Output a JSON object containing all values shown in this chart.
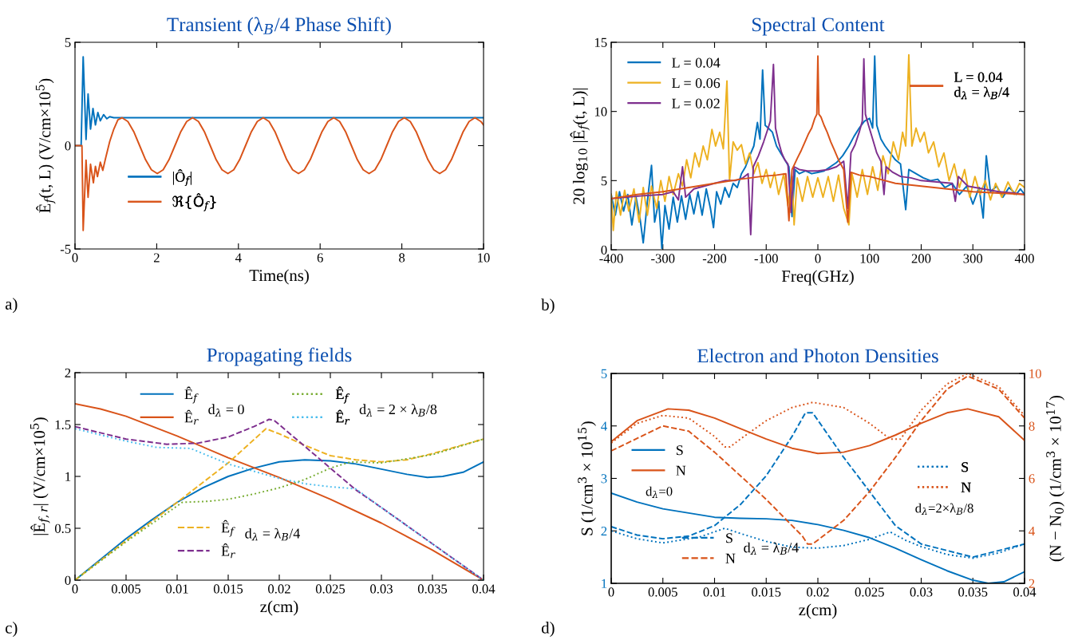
{
  "chart_data": [
    {
      "type": "line",
      "title": "Transient (λ$_{B}$/4 Phase Shift)",
      "xlabel": "Time(ns)",
      "ylabel": "Ê$_{f}$(t, L) (V/cm×10$^{5}$)",
      "xlim": [
        0,
        10
      ],
      "xticks": [
        0,
        2,
        4,
        6,
        8,
        10
      ],
      "ylim": [
        -5,
        5
      ],
      "yticks": [
        -5,
        0,
        5
      ],
      "legend": "bottom left",
      "annotations": [
        "a)"
      ],
      "series": [
        {
          "name": "|Ô$_{f}$|",
          "color": "#0072bd",
          "x": [
            0,
            0.15,
            0.2,
            0.27,
            0.32,
            0.38,
            0.44,
            0.5,
            0.56,
            0.62,
            0.7,
            0.78,
            0.85,
            0.95,
            10
          ],
          "values": [
            0,
            0,
            4.3,
            0.3,
            2.5,
            0.8,
            1.8,
            1.0,
            1.6,
            1.2,
            1.5,
            1.3,
            1.4,
            1.35,
            1.35
          ]
        },
        {
          "name": "ℜ{Ô$_{f}$}",
          "color": "#d95319",
          "x": [
            0,
            0.17,
            0.2,
            0.27,
            0.32,
            0.38,
            0.45,
            0.5,
            0.55,
            0.62,
            0.68,
            0.75,
            0.85,
            0.95,
            1.05,
            1.15,
            1.294,
            1.438,
            1.582,
            1.726,
            1.87,
            2.014,
            2.158,
            2.302,
            2.446,
            2.59,
            2.734,
            2.878,
            3.022,
            3.166,
            3.31,
            3.454,
            3.598,
            3.742,
            3.886,
            4.03,
            4.174,
            4.318,
            4.462,
            4.606,
            4.75,
            4.894,
            5.038,
            5.182,
            5.326,
            5.47,
            5.614,
            5.758,
            5.902,
            6.046,
            6.19,
            6.334,
            6.478,
            6.622,
            6.766,
            6.91,
            7.054,
            7.198,
            7.342,
            7.486,
            7.63,
            7.774,
            7.918,
            8.062,
            8.206,
            8.35,
            8.494,
            8.638,
            8.782,
            8.926,
            9.07,
            9.214,
            9.358,
            9.502,
            9.646,
            9.79,
            9.934,
            10
          ],
          "values": [
            0,
            0,
            -4.1,
            -0.7,
            -2.5,
            -0.9,
            -1.8,
            -1.0,
            -1.5,
            -0.8,
            -1.2,
            -0.6,
            0.2,
            0.8,
            1.25,
            1.35,
            1.17,
            0.68,
            0,
            -0.68,
            -1.17,
            -1.35,
            -1.17,
            -0.68,
            0,
            0.68,
            1.17,
            1.35,
            1.17,
            0.68,
            0,
            -0.68,
            -1.17,
            -1.35,
            -1.17,
            -0.68,
            0,
            0.68,
            1.17,
            1.35,
            1.17,
            0.68,
            0,
            -0.68,
            -1.17,
            -1.35,
            -1.17,
            -0.68,
            0,
            0.68,
            1.17,
            1.35,
            1.17,
            0.68,
            0,
            -0.68,
            -1.17,
            -1.35,
            -1.17,
            -0.68,
            0,
            0.68,
            1.17,
            1.35,
            1.17,
            0.68,
            0,
            -0.68,
            -1.17,
            -1.35,
            -1.17,
            -0.68,
            0,
            0.68,
            1.17,
            1.35,
            1.17,
            1.0
          ]
        }
      ]
    },
    {
      "type": "line",
      "title": "Spectral Content",
      "xlabel": "Freq(GHz)",
      "ylabel": "20 log$_{10}$ |Ê$_{f}$(t, L)|",
      "xlim": [
        -400,
        400
      ],
      "xticks": [
        -400,
        -300,
        -200,
        -100,
        0,
        100,
        200,
        300,
        400
      ],
      "ylim": [
        0,
        15
      ],
      "yticks": [
        0,
        5,
        10,
        15
      ],
      "legend": [
        "top left",
        "top right"
      ],
      "annotations": [
        "b)"
      ],
      "series": [
        {
          "name": "L = 0.04",
          "color": "#0072bd",
          "x": [
            -400,
            -392,
            -384,
            -376,
            -368,
            -360,
            -352,
            -344,
            -338,
            -330,
            -322,
            -316,
            -308,
            -302,
            -296,
            -288,
            -280,
            -272,
            -264,
            -256,
            -248,
            -240,
            -232,
            -224,
            -216,
            -208,
            -202,
            -196,
            -188,
            -180,
            -172,
            -164,
            -156,
            -148,
            -140,
            -132,
            -124,
            -117,
            -112,
            -107,
            -102,
            -96,
            -88,
            -80,
            -72,
            -64,
            -56,
            -50,
            -44,
            -36,
            -24,
            -12,
            0,
            12,
            24,
            36,
            48,
            60,
            70,
            80,
            90,
            100,
            106,
            110,
            114,
            122,
            130,
            140,
            150,
            160,
            170,
            176,
            190,
            204,
            218,
            232,
            246,
            260,
            274,
            288,
            300,
            312,
            320,
            326,
            334,
            346,
            358,
            370,
            384,
            392,
            400
          ],
          "values": [
            4.0,
            2.5,
            4.2,
            2.8,
            4.0,
            1.8,
            3.8,
            2.2,
            0.5,
            3.5,
            6.1,
            2.0,
            3.5,
            0.1,
            3.2,
            1.5,
            3.8,
            2.0,
            3.9,
            2.2,
            4.0,
            2.6,
            4.2,
            2.5,
            4.4,
            3.0,
            1.6,
            4.2,
            3.3,
            4.5,
            3.8,
            4.8,
            4.5,
            5.5,
            6.0,
            6.8,
            7.5,
            9.2,
            8.0,
            13.0,
            9.0,
            8.8,
            8.5,
            7.5,
            7.0,
            6.5,
            6.0,
            2.4,
            5.8,
            5.5,
            5.7,
            5.5,
            5.6,
            5.7,
            6.0,
            6.3,
            6.8,
            7.5,
            8.2,
            8.8,
            9.3,
            9.5,
            8.8,
            14.0,
            9.0,
            8.0,
            7.5,
            7.0,
            6.5,
            6.2,
            2.9,
            5.8,
            5.5,
            5.2,
            5.0,
            5.1,
            4.5,
            4.8,
            4.0,
            4.6,
            3.3,
            4.5,
            2.3,
            6.8,
            4.2,
            4.6,
            3.8,
            4.5,
            4.0,
            4.4,
            4.0
          ]
        },
        {
          "name": "L = 0.06",
          "color": "#edb120",
          "x": [
            -400,
            -396,
            -390,
            -382,
            -374,
            -366,
            -356,
            -346,
            -338,
            -330,
            -322,
            -312,
            -304,
            -296,
            -288,
            -280,
            -270,
            -262,
            -254,
            -246,
            -238,
            -230,
            -222,
            -214,
            -205,
            -198,
            -190,
            -183,
            -176,
            -171,
            -164,
            -156,
            -148,
            -140,
            -132,
            -124,
            -116,
            -108,
            -100,
            -92,
            -84,
            -76,
            -66,
            -58,
            -50,
            -46,
            -40,
            -30,
            -20,
            -10,
            0,
            10,
            20,
            30,
            40,
            50,
            60,
            66,
            76,
            86,
            96,
            106,
            116,
            126,
            136,
            146,
            156,
            164,
            170,
            176,
            182,
            190,
            198,
            206,
            214,
            224,
            234,
            244,
            254,
            264,
            274,
            284,
            294,
            304,
            314,
            324,
            334,
            344,
            356,
            368,
            380,
            390,
            400
          ],
          "values": [
            4.0,
            1.4,
            4.2,
            2.5,
            4.3,
            2.8,
            4.4,
            2.0,
            4.5,
            2.5,
            4.6,
            3.0,
            5.0,
            3.5,
            5.3,
            4.0,
            5.5,
            4.6,
            6.5,
            5.2,
            7.0,
            6.0,
            7.5,
            6.5,
            8.7,
            7.5,
            8.5,
            7.3,
            12.2,
            5.0,
            7.8,
            7.2,
            7.6,
            6.2,
            7.0,
            5.5,
            6.3,
            4.8,
            5.8,
            4.5,
            5.6,
            4.0,
            5.5,
            3.2,
            5.3,
            1.8,
            5.2,
            3.5,
            5.3,
            3.8,
            5.2,
            3.8,
            5.3,
            3.5,
            5.4,
            3.0,
            1.8,
            5.5,
            3.8,
            5.8,
            4.0,
            6.0,
            4.3,
            6.8,
            5.5,
            7.8,
            6.5,
            8.5,
            7.5,
            14.1,
            7.5,
            8.8,
            7.8,
            8.5,
            7.0,
            7.8,
            6.0,
            7.0,
            5.0,
            6.2,
            4.5,
            5.8,
            3.8,
            5.3,
            4.0,
            5.0,
            3.6,
            4.8,
            3.8,
            4.9,
            4.0,
            4.8,
            4.5
          ]
        },
        {
          "name": "L = 0.02",
          "color": "#7e2f8e",
          "x": [
            -400,
            -370,
            -340,
            -300,
            -280,
            -270,
            -262,
            -256,
            -240,
            -220,
            -200,
            -180,
            -160,
            -145,
            -135,
            -130,
            -125,
            -115,
            -105,
            -98,
            -92,
            -86,
            -82,
            -76,
            -70,
            -64,
            -58,
            -52,
            -46,
            -36,
            -20,
            0,
            20,
            36,
            50,
            58,
            64,
            72,
            80,
            86,
            89,
            92,
            98,
            106,
            114,
            122,
            128,
            132,
            145,
            160,
            180,
            200,
            230,
            260,
            266,
            272,
            290,
            320,
            350,
            380,
            400
          ],
          "values": [
            3.7,
            3.8,
            3.9,
            4.0,
            4.2,
            3.6,
            6.0,
            3.8,
            4.4,
            4.6,
            4.8,
            5.0,
            5.0,
            5.2,
            5.5,
            1.1,
            6.0,
            6.8,
            7.8,
            8.6,
            9.3,
            13.4,
            8.8,
            7.8,
            7.0,
            6.5,
            6.2,
            2.7,
            6.0,
            5.8,
            5.7,
            5.7,
            5.8,
            6.0,
            6.4,
            3.0,
            7.0,
            7.6,
            8.5,
            9.3,
            13.8,
            9.8,
            9.0,
            8.0,
            7.0,
            6.4,
            4.0,
            6.0,
            5.6,
            5.3,
            5.2,
            5.0,
            4.9,
            4.8,
            3.5,
            5.3,
            4.6,
            4.4,
            4.2,
            4.1,
            4.0
          ]
        },
        {
          "name": "L = 0.04\nd$_{λ}$ = λ$_{B}$/4",
          "color": "#d95319",
          "line_style": "solid",
          "x": [
            -400,
            -350,
            -300,
            -250,
            -200,
            -150,
            -110,
            -80,
            -62,
            -56,
            -50,
            -40,
            -32,
            -25,
            -18,
            -12,
            -6,
            -2,
            0,
            2,
            6,
            12,
            18,
            25,
            32,
            40,
            50,
            58,
            64,
            80,
            100,
            120,
            150,
            200,
            250,
            300,
            350,
            400
          ],
          "values": [
            3.7,
            4.0,
            4.2,
            4.5,
            4.8,
            5.1,
            5.3,
            5.4,
            5.5,
            2.1,
            5.8,
            6.6,
            7.2,
            7.8,
            8.4,
            8.8,
            9.5,
            9.8,
            14.0,
            9.8,
            9.6,
            9.0,
            8.5,
            7.8,
            7.2,
            6.5,
            5.8,
            2.0,
            5.6,
            5.4,
            5.3,
            5.1,
            4.8,
            4.6,
            4.4,
            4.2,
            4.1,
            4.0
          ]
        }
      ]
    },
    {
      "type": "line",
      "title": "Propagating fields",
      "xlabel": "z(cm)",
      "ylabel": "|Ê$_{f,r}$| (V/cm×10$^{5}$)",
      "xlim": [
        0,
        0.04
      ],
      "xticks": [
        0,
        0.005,
        0.01,
        0.015,
        0.02,
        0.025,
        0.03,
        0.035,
        0.04
      ],
      "ylim": [
        0,
        2
      ],
      "yticks": [
        0,
        0.5,
        1,
        1.5,
        2
      ],
      "legend": [
        "top",
        "bottom",
        "top right"
      ],
      "annotations": [
        "c)",
        "d$_{λ}$ = 0",
        "d$_{λ}$ = λ$_{B}$/4",
        "d$_{λ}$ = 2 × λ$_{B}$/8"
      ],
      "series": [
        {
          "name": "Ê$_{f}$",
          "color": "#0072bd",
          "line_style": "solid",
          "x": [
            0,
            0.0025,
            0.005,
            0.0075,
            0.01,
            0.0125,
            0.015,
            0.0175,
            0.02,
            0.0225,
            0.025,
            0.0275,
            0.03,
            0.0325,
            0.0345,
            0.036,
            0.038,
            0.04
          ],
          "values": [
            0,
            0.2,
            0.4,
            0.58,
            0.75,
            0.89,
            1.0,
            1.08,
            1.14,
            1.16,
            1.15,
            1.12,
            1.07,
            1.02,
            0.99,
            1.0,
            1.04,
            1.14
          ]
        },
        {
          "name": "Ê$_{r}$",
          "color": "#d95319",
          "line_style": "solid",
          "x": [
            0,
            0.0025,
            0.005,
            0.01,
            0.015,
            0.02,
            0.025,
            0.03,
            0.035,
            0.04
          ],
          "values": [
            1.7,
            1.65,
            1.58,
            1.39,
            1.18,
            0.99,
            0.78,
            0.55,
            0.29,
            0
          ]
        },
        {
          "name": "Ê$_{f}$",
          "color": "#edb120",
          "line_style": "dashed",
          "x": [
            0,
            0.005,
            0.01,
            0.015,
            0.0187,
            0.02,
            0.0225,
            0.025,
            0.0275,
            0.03,
            0.0325,
            0.035,
            0.0375,
            0.04
          ],
          "values": [
            0,
            0.38,
            0.75,
            1.13,
            1.46,
            1.41,
            1.3,
            1.2,
            1.16,
            1.14,
            1.16,
            1.22,
            1.29,
            1.36
          ]
        },
        {
          "name": "Ê$_{r}$",
          "color": "#7e2f8e",
          "line_style": "dashed",
          "x": [
            0,
            0.005,
            0.009,
            0.012,
            0.015,
            0.0175,
            0.019,
            0.0195,
            0.0225,
            0.025,
            0.0275,
            0.03,
            0.035,
            0.04
          ],
          "values": [
            1.48,
            1.36,
            1.31,
            1.32,
            1.38,
            1.48,
            1.55,
            1.54,
            1.29,
            1.08,
            0.87,
            0.7,
            0.35,
            0
          ]
        },
        {
          "name": "Ê$_{f}$",
          "color": "#77ac30",
          "line_style": "dotted",
          "x": [
            0,
            0.005,
            0.0105,
            0.013,
            0.015,
            0.0175,
            0.02,
            0.0225,
            0.025,
            0.027,
            0.03,
            0.035,
            0.04
          ],
          "values": [
            0,
            0.37,
            0.75,
            0.76,
            0.78,
            0.83,
            0.89,
            0.97,
            1.08,
            1.14,
            1.13,
            1.21,
            1.36
          ]
        },
        {
          "name": "Ê$_{r}$",
          "color": "#4dbeee",
          "line_style": "dotted",
          "x": [
            0,
            0.005,
            0.008,
            0.0113,
            0.015,
            0.02,
            0.0225,
            0.025,
            0.0275,
            0.03,
            0.035,
            0.04
          ],
          "values": [
            1.46,
            1.34,
            1.28,
            1.27,
            1.12,
            0.98,
            0.93,
            0.9,
            0.88,
            0.7,
            0.35,
            0
          ]
        }
      ]
    },
    {
      "type": "line",
      "title": "Electron and Photon Densities",
      "xlabel": "z(cm)",
      "ylabel": "S (1/cm$^{3}$ × 10$^{15}$)",
      "y2label": "(N − N$_{0}$) (1/cm$^{3}$ × 10$^{17}$)",
      "xlim": [
        0,
        0.04
      ],
      "xticks": [
        0,
        0.005,
        0.01,
        0.015,
        0.02,
        0.025,
        0.03,
        0.035,
        0.04
      ],
      "ylim": [
        1,
        5
      ],
      "yticks": [
        1,
        2,
        3,
        4,
        5
      ],
      "y2lim": [
        2,
        10
      ],
      "y2ticks": [
        2,
        4,
        6,
        8,
        10
      ],
      "legend": [
        "center left",
        "bottom center",
        "center right"
      ],
      "annotations": [
        "d)",
        "d$_{λ}$=0",
        "d$_{λ}$ = λ$_{B}$/4",
        "d$_{λ}$=2×λ$_{B}$/8"
      ],
      "series": [
        {
          "name": "S",
          "color": "#0072bd",
          "line_style": "solid",
          "x": [
            0,
            0.0025,
            0.005,
            0.01,
            0.0125,
            0.015,
            0.0175,
            0.02,
            0.0225,
            0.025,
            0.0275,
            0.03,
            0.0325,
            0.035,
            0.0365,
            0.038,
            0.04
          ],
          "values": [
            2.72,
            2.55,
            2.42,
            2.26,
            2.24,
            2.23,
            2.2,
            2.12,
            2.01,
            1.87,
            1.67,
            1.45,
            1.24,
            1.06,
            1.0,
            1.03,
            1.22
          ]
        },
        {
          "name": "N",
          "color": "#d95319",
          "line_style": "solid",
          "axis": "y2",
          "x": [
            0,
            0.0025,
            0.0055,
            0.0075,
            0.01,
            0.0125,
            0.015,
            0.0175,
            0.02,
            0.0225,
            0.025,
            0.0275,
            0.03,
            0.0325,
            0.0345,
            0.0375,
            0.04
          ],
          "values": [
            7.4,
            8.2,
            8.65,
            8.6,
            8.3,
            7.9,
            7.5,
            7.15,
            6.95,
            7.0,
            7.25,
            7.65,
            8.1,
            8.5,
            8.65,
            8.35,
            7.45
          ]
        },
        {
          "name": "S",
          "color": "#0072bd",
          "line_style": "dashed",
          "x": [
            0,
            0.0025,
            0.005,
            0.0075,
            0.01,
            0.0125,
            0.015,
            0.0175,
            0.0188,
            0.0195,
            0.0225,
            0.025,
            0.0275,
            0.03,
            0.035,
            0.04
          ],
          "values": [
            2.08,
            1.92,
            1.85,
            1.9,
            2.1,
            2.5,
            3.05,
            3.8,
            4.25,
            4.25,
            3.4,
            2.75,
            2.1,
            1.75,
            1.5,
            1.75
          ]
        },
        {
          "name": "N",
          "color": "#d95319",
          "line_style": "dashed",
          "axis": "y2",
          "x": [
            0,
            0.005,
            0.0075,
            0.01,
            0.0125,
            0.015,
            0.0175,
            0.0185,
            0.019,
            0.0195,
            0.0225,
            0.025,
            0.0275,
            0.03,
            0.0325,
            0.0345,
            0.0375,
            0.04
          ],
          "values": [
            7.05,
            8.0,
            7.8,
            7.0,
            6.1,
            5.2,
            4.2,
            3.8,
            3.5,
            3.5,
            4.4,
            5.5,
            6.8,
            8.2,
            9.4,
            9.9,
            9.4,
            8.3
          ]
        },
        {
          "name": "S",
          "color": "#0072bd",
          "line_style": "dotted",
          "x": [
            0,
            0.0025,
            0.005,
            0.0085,
            0.011,
            0.0125,
            0.015,
            0.0175,
            0.02,
            0.0225,
            0.025,
            0.027,
            0.0285,
            0.03,
            0.0325,
            0.035,
            0.0375,
            0.04
          ],
          "values": [
            2.0,
            1.85,
            1.77,
            1.88,
            2.05,
            1.95,
            1.8,
            1.69,
            1.67,
            1.72,
            1.84,
            1.98,
            1.82,
            1.7,
            1.55,
            1.48,
            1.58,
            1.75
          ]
        },
        {
          "name": "N",
          "color": "#d95319",
          "line_style": "dotted",
          "axis": "y2",
          "x": [
            0,
            0.0025,
            0.005,
            0.0075,
            0.01,
            0.011,
            0.0115,
            0.0125,
            0.015,
            0.0175,
            0.0195,
            0.0225,
            0.025,
            0.027,
            0.028,
            0.03,
            0.0325,
            0.0345,
            0.0375,
            0.04
          ],
          "values": [
            7.35,
            8.1,
            8.4,
            8.3,
            7.6,
            7.2,
            7.2,
            7.5,
            8.2,
            8.7,
            8.9,
            8.7,
            8.1,
            7.5,
            7.5,
            8.6,
            9.6,
            10.0,
            9.5,
            8.4
          ]
        }
      ]
    }
  ]
}
